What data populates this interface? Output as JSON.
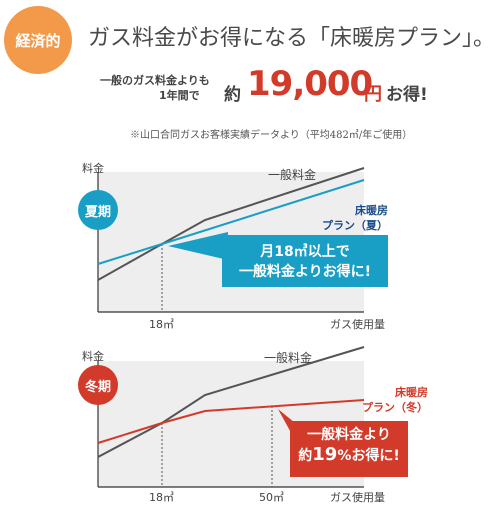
{
  "badge": {
    "label": "経済的"
  },
  "headline": "ガス料金がお得になる「床暖房プラン」。",
  "savings": {
    "line1": "一般のガス料金よりも",
    "line2": "1年間で",
    "approx": "約",
    "amount": "19,000",
    "unit": "円",
    "suffix": "お得!"
  },
  "note": "※山口合同ガスお客様実績データより（平均482㎥/年ご使用）",
  "colors": {
    "badge": "#f39a4a",
    "summer": "#199ec6",
    "winter": "#d23a2a",
    "general_line": "#555555",
    "panel_bg": "#eeeeee"
  },
  "summer": {
    "season_label": "夏期",
    "y_axis_label": "料金",
    "x_axis_label": "ガス使用量",
    "x_tick": "18㎥",
    "general_label": "一般料金",
    "plan_label_line1": "床暖房",
    "plan_label_line2": "プラン（夏）",
    "callout_line1": "月18㎥以上で",
    "callout_line2": "一般料金よりお得に!"
  },
  "winter": {
    "season_label": "冬期",
    "y_axis_label": "料金",
    "x_axis_label": "ガス使用量",
    "x_tick1": "18㎥",
    "x_tick2": "50㎥",
    "general_label": "一般料金",
    "plan_label_line1": "床暖房",
    "plan_label_line2": "プラン（冬）",
    "callout_line1": "一般料金より",
    "callout_line2_pre": "約",
    "callout_line2_num": "19",
    "callout_line2_post": "%お得に!"
  }
}
